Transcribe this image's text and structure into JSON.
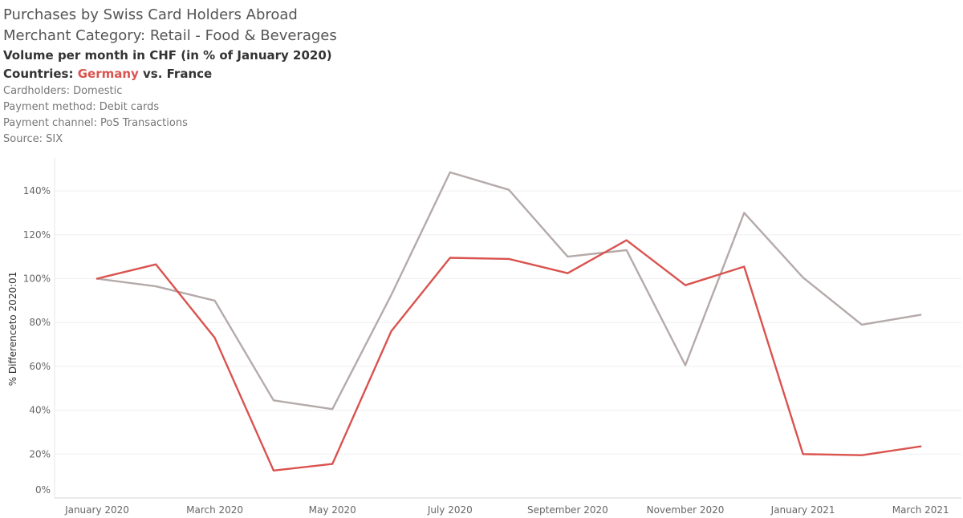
{
  "header": {
    "title": "Purchases by Swiss Card Holders Abroad",
    "category": "Merchant Category:  Retail - Food & Beverages",
    "measure": "Volume per month in CHF (in % of January 2020)",
    "countries_prefix": "Countries: ",
    "countries_germany": "Germany",
    "countries_suffix": " vs. France",
    "cardholders": "Cardholders: Domestic",
    "payment_method": "Payment method: Debit cards",
    "payment_channel": "Payment channel: PoS Transactions",
    "source": "Source: SIX"
  },
  "chart_data": {
    "type": "line",
    "ylabel": "% Differenceto 2020:01",
    "xlabel": "",
    "ylim": [
      0,
      150
    ],
    "yticks": [
      0,
      20,
      40,
      60,
      80,
      100,
      120,
      140
    ],
    "grid": true,
    "x": [
      "2020-01",
      "2020-02",
      "2020-03",
      "2020-04",
      "2020-05",
      "2020-06",
      "2020-07",
      "2020-08",
      "2020-09",
      "2020-10",
      "2020-11",
      "2020-12",
      "2021-01",
      "2021-02",
      "2021-03"
    ],
    "xtick_labels": [
      "January 2020",
      "",
      "March 2020",
      "",
      "May 2020",
      "",
      "July 2020",
      "",
      "September 2020",
      "",
      "November 2020",
      "",
      "January 2021",
      "",
      "March 2021"
    ],
    "series": [
      {
        "key": "france",
        "color": "#b5aaaa",
        "values": [
          100,
          96.5,
          90,
          44.5,
          40.5,
          92.5,
          148.5,
          140.5,
          110,
          113,
          60.5,
          130,
          100.5,
          79,
          83.5
        ]
      },
      {
        "key": "germany",
        "color": "#d9534f",
        "values": [
          100,
          106.5,
          73,
          12.5,
          15.5,
          76,
          109.5,
          109,
          102.5,
          117.5,
          97,
          105.5,
          20,
          19.5,
          23.5
        ]
      }
    ]
  }
}
